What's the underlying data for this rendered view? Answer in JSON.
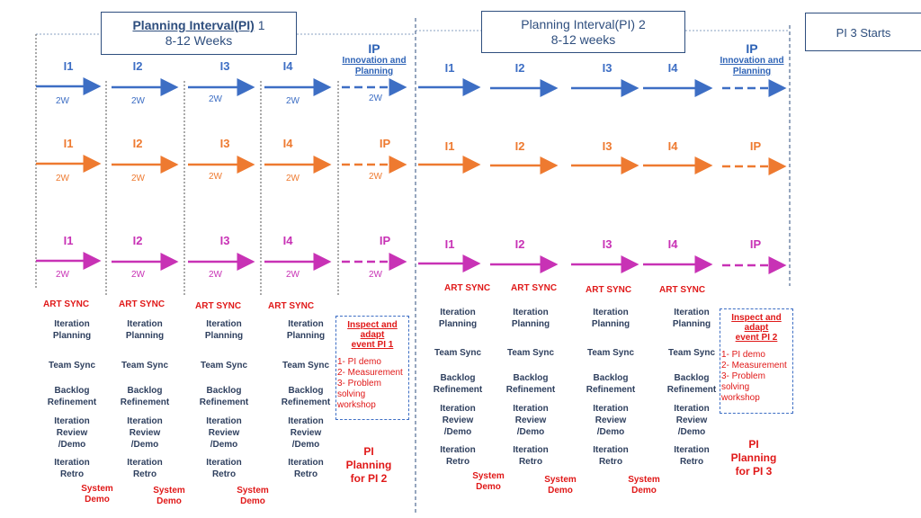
{
  "pi1": {
    "title_underlined": "Planning Interval(PI)",
    "title_num": " 1",
    "duration": "8-12 Weeks"
  },
  "pi2": {
    "title": "Planning Interval(PI) 2",
    "duration": "8-12 weeks"
  },
  "pi3": {
    "title": "PI  3 Starts"
  },
  "iterations": [
    "I1",
    "I2",
    "I3",
    "I4"
  ],
  "ip": {
    "label": "IP",
    "subtitle_line1": "Innovation and",
    "subtitle_line2": "Planning"
  },
  "duration_label": "2W",
  "activities": {
    "art_sync": "ART SYNC",
    "iteration_planning": [
      "Iteration",
      "Planning"
    ],
    "team_sync": "Team Sync",
    "backlog_refinement": [
      "Backlog",
      "Refinement"
    ],
    "iteration_review": [
      "Iteration",
      "Review",
      "/Demo"
    ],
    "iteration_retro": [
      "Iteration",
      "Retro"
    ],
    "system_demo": [
      "System",
      "Demo"
    ]
  },
  "inspect_adapt_pi1": {
    "title": [
      "Inspect and adapt",
      "event PI 1"
    ],
    "items": [
      "1- PI demo",
      "2- Measurement",
      "3- Problem solving",
      "workshop"
    ]
  },
  "inspect_adapt_pi2": {
    "title": [
      "Inspect and adapt",
      "event PI 2"
    ],
    "items": [
      "1- PI demo",
      "2- Measurement",
      "3- Problem solving",
      "workshop"
    ]
  },
  "pi_planning_2": [
    "PI",
    "Planning",
    "for PI 2"
  ],
  "pi_planning_3": [
    "PI",
    "Planning",
    "for PI 3"
  ],
  "colors": {
    "blue": "#3d6ec4",
    "orange": "#ee7a30",
    "magenta": "#c832b5",
    "red": "#e01818",
    "navy": "#2e4e7e"
  }
}
